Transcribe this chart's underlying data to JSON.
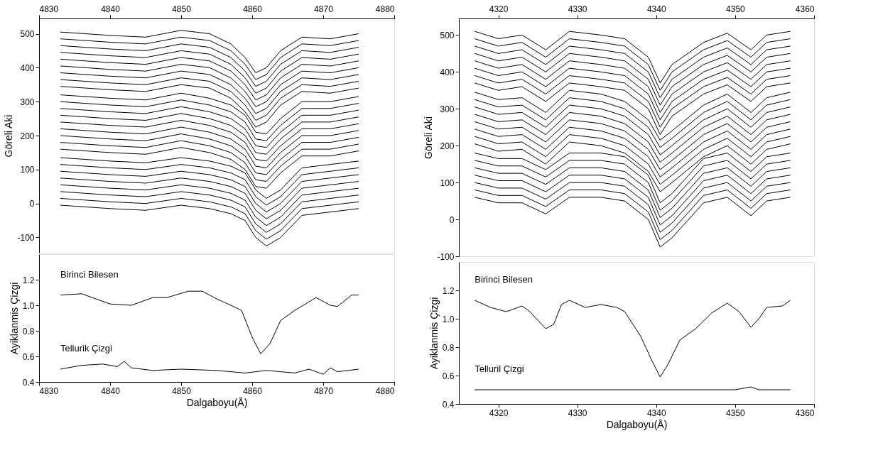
{
  "chart_data": [
    {
      "type": "line",
      "ylabel": "Göreli Aki",
      "xlim": [
        4830,
        4880
      ],
      "xticks": [
        4830,
        4840,
        4850,
        4860,
        4870,
        4880
      ],
      "ylim": [
        -145,
        545
      ],
      "yticks": [
        -100,
        0,
        100,
        200,
        300,
        400,
        500
      ],
      "x": [
        4833,
        4840,
        4845,
        4850,
        4854,
        4857,
        4859,
        4860.5,
        4862,
        4864,
        4867,
        4871,
        4875
      ],
      "series": [
        {
          "color": "#000000",
          "values": [
            505,
            495,
            490,
            510,
            500,
            470,
            430,
            385,
            400,
            450,
            490,
            485,
            500
          ]
        },
        {
          "color": "#000000",
          "values": [
            485,
            475,
            470,
            490,
            480,
            450,
            410,
            365,
            380,
            430,
            470,
            465,
            480
          ]
        },
        {
          "color": "#000000",
          "values": [
            465,
            455,
            450,
            470,
            460,
            430,
            390,
            345,
            360,
            410,
            450,
            445,
            460
          ]
        },
        {
          "color": "#000000",
          "values": [
            445,
            435,
            430,
            450,
            440,
            410,
            370,
            325,
            340,
            390,
            430,
            425,
            440
          ]
        },
        {
          "color": "#000000",
          "values": [
            425,
            415,
            410,
            430,
            420,
            390,
            350,
            305,
            320,
            370,
            410,
            405,
            420
          ]
        },
        {
          "color": "#000000",
          "values": [
            405,
            395,
            390,
            410,
            400,
            370,
            330,
            285,
            300,
            350,
            390,
            385,
            400
          ]
        },
        {
          "color": "#000000",
          "values": [
            385,
            375,
            370,
            390,
            380,
            350,
            310,
            265,
            280,
            330,
            370,
            365,
            380
          ]
        },
        {
          "color": "#000000",
          "values": [
            365,
            355,
            350,
            370,
            360,
            330,
            290,
            245,
            260,
            310,
            350,
            345,
            360
          ]
        },
        {
          "color": "#000000",
          "values": [
            345,
            335,
            330,
            350,
            340,
            310,
            270,
            225,
            240,
            290,
            330,
            325,
            340
          ]
        },
        {
          "color": "#000000",
          "values": [
            320,
            310,
            305,
            325,
            310,
            290,
            260,
            210,
            205,
            250,
            300,
            300,
            315
          ]
        },
        {
          "color": "#000000",
          "values": [
            300,
            290,
            285,
            305,
            290,
            270,
            240,
            190,
            185,
            230,
            280,
            280,
            295
          ]
        },
        {
          "color": "#000000",
          "values": [
            280,
            270,
            265,
            285,
            270,
            250,
            220,
            170,
            165,
            210,
            260,
            260,
            275
          ]
        },
        {
          "color": "#000000",
          "values": [
            260,
            250,
            245,
            265,
            250,
            230,
            200,
            150,
            145,
            190,
            240,
            240,
            255
          ]
        },
        {
          "color": "#000000",
          "values": [
            240,
            230,
            225,
            245,
            230,
            210,
            180,
            130,
            125,
            170,
            220,
            220,
            235
          ]
        },
        {
          "color": "#000000",
          "values": [
            220,
            210,
            205,
            225,
            210,
            190,
            160,
            110,
            105,
            150,
            200,
            200,
            215
          ]
        },
        {
          "color": "#000000",
          "values": [
            200,
            190,
            185,
            205,
            190,
            170,
            140,
            90,
            85,
            130,
            180,
            180,
            195
          ]
        },
        {
          "color": "#000000",
          "values": [
            180,
            170,
            165,
            185,
            170,
            150,
            120,
            70,
            65,
            110,
            160,
            160,
            175
          ]
        },
        {
          "color": "#000000",
          "values": [
            160,
            150,
            145,
            165,
            150,
            130,
            100,
            50,
            45,
            90,
            140,
            140,
            155
          ]
        },
        {
          "color": "#000000",
          "values": [
            135,
            125,
            120,
            135,
            125,
            110,
            90,
            40,
            15,
            40,
            105,
            115,
            125
          ]
        },
        {
          "color": "#000000",
          "values": [
            115,
            105,
            100,
            115,
            105,
            90,
            70,
            20,
            -5,
            20,
            85,
            95,
            105
          ]
        },
        {
          "color": "#000000",
          "values": [
            95,
            85,
            80,
            95,
            85,
            70,
            50,
            0,
            -25,
            0,
            65,
            75,
            85
          ]
        },
        {
          "color": "#000000",
          "values": [
            75,
            65,
            60,
            75,
            65,
            50,
            30,
            -20,
            -45,
            -20,
            45,
            55,
            65
          ]
        },
        {
          "color": "#000000",
          "values": [
            55,
            45,
            40,
            55,
            45,
            30,
            10,
            -40,
            -65,
            -40,
            25,
            35,
            45
          ]
        },
        {
          "color": "#000000",
          "values": [
            35,
            25,
            20,
            35,
            25,
            10,
            -10,
            -60,
            -85,
            -60,
            5,
            15,
            25
          ]
        },
        {
          "color": "#000000",
          "values": [
            15,
            5,
            0,
            15,
            5,
            -10,
            -30,
            -80,
            -105,
            -80,
            -15,
            -5,
            5
          ]
        },
        {
          "color": "#000000",
          "values": [
            -5,
            -15,
            -20,
            -5,
            -15,
            -30,
            -50,
            -100,
            -125,
            -100,
            -35,
            -25,
            -15
          ]
        }
      ]
    },
    {
      "type": "line",
      "xlabel": "Dalgaboyu(Å)",
      "ylabel": "Ayiklanmis Çizgi",
      "xlim": [
        4830,
        4880
      ],
      "xticks": [
        4830,
        4840,
        4850,
        4860,
        4870,
        4880
      ],
      "ylim": [
        0.4,
        1.4
      ],
      "yticks": [
        0.4,
        0.6,
        0.8,
        {
          "value": 1,
          "label": "1.0"
        },
        1.2
      ],
      "series": [
        {
          "name": "Birinci Bilesen",
          "color": "#000000",
          "x": [
            4833,
            4836,
            4840,
            4843,
            4846,
            4848,
            4851,
            4853,
            4855,
            4857,
            4858.5,
            4860,
            4861.2,
            4862.5,
            4864,
            4866,
            4869,
            4871,
            4872,
            4874,
            4875
          ],
          "values": [
            1.08,
            1.09,
            1.01,
            1.0,
            1.06,
            1.06,
            1.11,
            1.11,
            1.05,
            1.0,
            0.96,
            0.75,
            0.62,
            0.7,
            0.88,
            0.96,
            1.06,
            1.0,
            0.99,
            1.08,
            1.08
          ]
        },
        {
          "name": "Tellurik Çizgi",
          "color": "#000000",
          "x": [
            4833,
            4836,
            4839,
            4841,
            4842,
            4843,
            4846,
            4850,
            4855,
            4859,
            4862,
            4866,
            4868,
            4870,
            4871,
            4872,
            4875
          ],
          "values": [
            0.5,
            0.53,
            0.54,
            0.52,
            0.56,
            0.51,
            0.49,
            0.5,
            0.49,
            0.47,
            0.49,
            0.47,
            0.5,
            0.46,
            0.51,
            0.48,
            0.5
          ]
        }
      ]
    },
    {
      "type": "line",
      "ylabel": "Göreli Aki",
      "xlim": [
        4315,
        4360
      ],
      "xticks": [
        4320,
        4330,
        4340,
        4350,
        4360
      ],
      "ylim": [
        -100,
        545
      ],
      "yticks": [
        -100,
        0,
        100,
        200,
        300,
        400,
        500
      ],
      "x": [
        4317,
        4320,
        4323,
        4326,
        4329,
        4333,
        4336,
        4339,
        4340.5,
        4342,
        4346,
        4349,
        4352,
        4354,
        4357
      ],
      "series": [
        {
          "color": "#000000",
          "values": [
            510,
            490,
            500,
            460,
            510,
            500,
            490,
            440,
            370,
            420,
            480,
            505,
            460,
            500,
            510
          ]
        },
        {
          "color": "#000000",
          "values": [
            490,
            470,
            480,
            440,
            490,
            480,
            470,
            420,
            350,
            400,
            460,
            485,
            440,
            480,
            490
          ]
        },
        {
          "color": "#000000",
          "values": [
            470,
            450,
            460,
            420,
            470,
            460,
            450,
            400,
            330,
            380,
            440,
            465,
            420,
            460,
            470
          ]
        },
        {
          "color": "#000000",
          "values": [
            450,
            430,
            440,
            400,
            450,
            440,
            430,
            380,
            310,
            360,
            420,
            445,
            400,
            440,
            450
          ]
        },
        {
          "color": "#000000",
          "values": [
            430,
            410,
            420,
            380,
            430,
            420,
            410,
            360,
            290,
            340,
            400,
            425,
            380,
            420,
            430
          ]
        },
        {
          "color": "#000000",
          "values": [
            410,
            390,
            400,
            360,
            410,
            400,
            390,
            340,
            270,
            320,
            380,
            405,
            360,
            400,
            410
          ]
        },
        {
          "color": "#000000",
          "values": [
            390,
            370,
            380,
            340,
            390,
            380,
            370,
            320,
            250,
            300,
            360,
            385,
            340,
            380,
            390
          ]
        },
        {
          "color": "#000000",
          "values": [
            370,
            350,
            360,
            320,
            370,
            360,
            350,
            300,
            230,
            280,
            340,
            365,
            320,
            360,
            370
          ]
        },
        {
          "color": "#000000",
          "values": [
            345,
            325,
            330,
            290,
            350,
            340,
            320,
            270,
            215,
            240,
            310,
            340,
            290,
            330,
            345
          ]
        },
        {
          "color": "#000000",
          "values": [
            325,
            305,
            310,
            270,
            330,
            320,
            300,
            250,
            195,
            220,
            290,
            320,
            270,
            310,
            325
          ]
        },
        {
          "color": "#000000",
          "values": [
            305,
            285,
            290,
            250,
            310,
            300,
            280,
            230,
            175,
            200,
            270,
            300,
            250,
            290,
            305
          ]
        },
        {
          "color": "#000000",
          "values": [
            285,
            265,
            270,
            230,
            290,
            280,
            260,
            210,
            155,
            180,
            250,
            280,
            230,
            270,
            285
          ]
        },
        {
          "color": "#000000",
          "values": [
            265,
            245,
            250,
            210,
            270,
            260,
            240,
            190,
            135,
            160,
            230,
            260,
            210,
            250,
            265
          ]
        },
        {
          "color": "#000000",
          "values": [
            245,
            225,
            230,
            190,
            250,
            240,
            220,
            170,
            115,
            140,
            210,
            240,
            190,
            230,
            245
          ]
        },
        {
          "color": "#000000",
          "values": [
            225,
            205,
            210,
            170,
            230,
            220,
            200,
            150,
            95,
            120,
            190,
            220,
            170,
            210,
            225
          ]
        },
        {
          "color": "#000000",
          "values": [
            205,
            185,
            190,
            150,
            210,
            200,
            180,
            130,
            75,
            100,
            170,
            200,
            150,
            190,
            205
          ]
        },
        {
          "color": "#000000",
          "values": [
            180,
            165,
            165,
            135,
            180,
            180,
            170,
            120,
            45,
            70,
            165,
            180,
            130,
            170,
            180
          ]
        },
        {
          "color": "#000000",
          "values": [
            160,
            145,
            145,
            115,
            160,
            160,
            150,
            100,
            25,
            50,
            145,
            160,
            110,
            150,
            160
          ]
        },
        {
          "color": "#000000",
          "values": [
            140,
            125,
            125,
            95,
            140,
            140,
            130,
            80,
            5,
            30,
            125,
            140,
            90,
            130,
            140
          ]
        },
        {
          "color": "#000000",
          "values": [
            120,
            105,
            105,
            75,
            120,
            120,
            110,
            60,
            -15,
            10,
            105,
            120,
            70,
            110,
            120
          ]
        },
        {
          "color": "#000000",
          "values": [
            100,
            85,
            85,
            55,
            100,
            100,
            90,
            40,
            -35,
            -10,
            85,
            100,
            50,
            90,
            100
          ]
        },
        {
          "color": "#000000",
          "values": [
            80,
            65,
            65,
            35,
            80,
            80,
            70,
            20,
            -55,
            -30,
            65,
            80,
            30,
            70,
            80
          ]
        },
        {
          "color": "#000000",
          "values": [
            60,
            45,
            45,
            15,
            60,
            60,
            50,
            0,
            -75,
            -50,
            45,
            60,
            10,
            50,
            60
          ]
        }
      ]
    },
    {
      "type": "line",
      "xlabel": "Dalgaboyu(Å)",
      "ylabel": "Ayiklanmis Çizgi",
      "xlim": [
        4315,
        4360
      ],
      "xticks": [
        4320,
        4330,
        4340,
        4350,
        4360
      ],
      "ylim": [
        0.4,
        1.4
      ],
      "yticks": [
        0.4,
        0.6,
        0.8,
        {
          "value": 1,
          "label": "1.0"
        },
        1.2
      ],
      "series": [
        {
          "name": "Birinci Bilesen",
          "color": "#000000",
          "x": [
            4317,
            4319,
            4321,
            4323,
            4324,
            4326,
            4327,
            4328,
            4329,
            4331,
            4333,
            4335,
            4336,
            4338,
            4339.5,
            4340.5,
            4341.5,
            4343,
            4345,
            4347,
            4349,
            4350.5,
            4352,
            4353,
            4354,
            4356,
            4357
          ],
          "values": [
            1.13,
            1.08,
            1.05,
            1.09,
            1.05,
            0.93,
            0.96,
            1.1,
            1.13,
            1.08,
            1.1,
            1.08,
            1.05,
            0.88,
            0.7,
            0.59,
            0.68,
            0.85,
            0.93,
            1.04,
            1.11,
            1.05,
            0.94,
            1.0,
            1.08,
            1.09,
            1.13
          ]
        },
        {
          "name": "Telluril Çizgi",
          "color": "#000000",
          "x": [
            4317,
            4320,
            4325,
            4330,
            4335,
            4340,
            4345,
            4350,
            4352,
            4353,
            4357
          ],
          "values": [
            0.5,
            0.5,
            0.5,
            0.5,
            0.5,
            0.5,
            0.5,
            0.5,
            0.52,
            0.5,
            0.5
          ]
        }
      ]
    }
  ]
}
